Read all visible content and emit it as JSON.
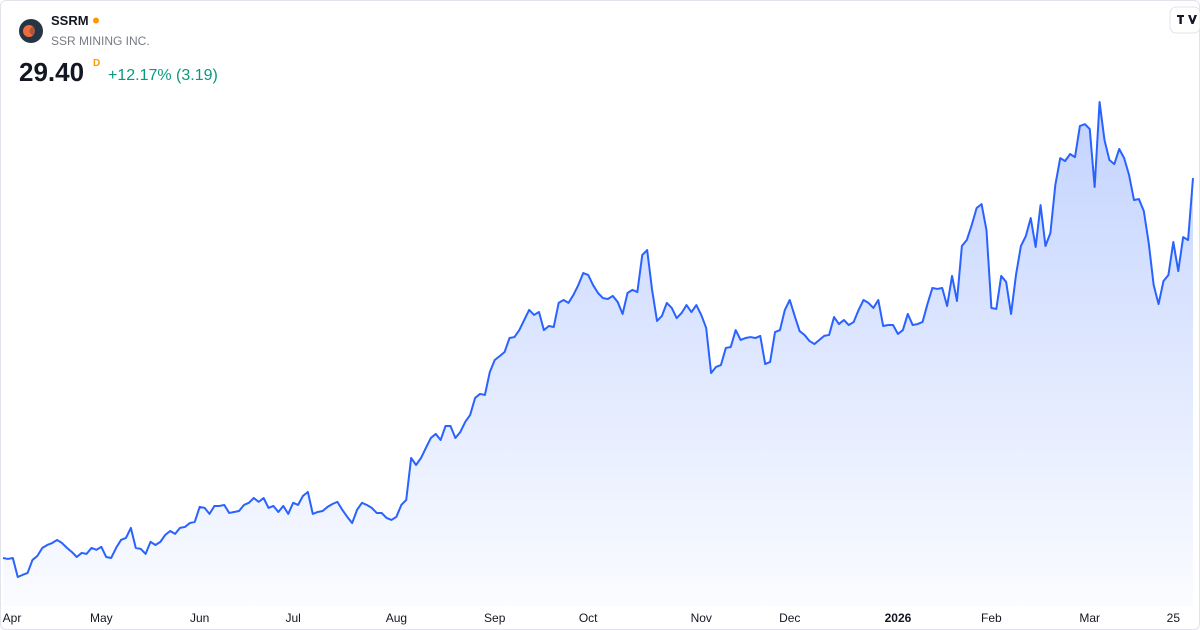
{
  "header": {
    "symbol": "SSRM",
    "name": "SSR MINING INC.",
    "price": "29.40",
    "interval": "D",
    "change": "+12.17% (3.19)"
  },
  "chart_data": {
    "type": "area",
    "color": "#2962ff",
    "categories": [
      null,
      "Apr",
      null,
      null,
      null,
      null,
      null,
      null,
      null,
      null,
      null,
      null,
      null,
      null,
      null,
      null,
      null,
      null,
      null,
      null,
      "May",
      null,
      null,
      null,
      null,
      null,
      null,
      null,
      null,
      null,
      null,
      null,
      null,
      null,
      null,
      null,
      null,
      null,
      null,
      null,
      "Jun",
      null,
      null,
      null,
      null,
      null,
      null,
      null,
      null,
      null,
      null,
      null,
      null,
      null,
      null,
      null,
      null,
      null,
      null,
      "Jul",
      null,
      null,
      null,
      null,
      null,
      null,
      null,
      null,
      null,
      null,
      null,
      null,
      null,
      null,
      null,
      null,
      null,
      null,
      null,
      null,
      "Aug",
      null,
      null,
      null,
      null,
      null,
      null,
      null,
      null,
      null,
      null,
      null,
      null,
      null,
      null,
      null,
      null,
      null,
      null,
      null,
      "Sep",
      null,
      null,
      null,
      null,
      null,
      null,
      null,
      null,
      null,
      null,
      null,
      null,
      null,
      null,
      null,
      null,
      null,
      null,
      "Oct",
      null,
      null,
      null,
      null,
      null,
      null,
      null,
      null,
      null,
      null,
      null,
      null,
      null,
      null,
      null,
      null,
      null,
      null,
      null,
      null,
      null,
      null,
      "Nov",
      null,
      null,
      null,
      null,
      null,
      null,
      null,
      null,
      null,
      null,
      null,
      null,
      null,
      null,
      null,
      null,
      null,
      "Dec",
      null,
      null,
      null,
      null,
      null,
      null,
      null,
      null,
      null,
      null,
      null,
      null,
      null,
      null,
      null,
      null,
      null,
      null,
      null,
      null,
      null,
      "2026",
      null,
      null,
      null,
      null,
      null,
      null,
      null,
      null,
      null,
      null,
      null,
      null,
      null,
      null,
      null,
      null,
      null,
      null,
      "Feb",
      null,
      null,
      null,
      null,
      null,
      null,
      null,
      null,
      null,
      null,
      null,
      null,
      null,
      null,
      null,
      null,
      null,
      null,
      null,
      "Mar",
      null,
      null,
      null,
      null,
      null,
      null,
      null,
      null,
      null,
      null,
      null,
      null,
      null,
      null,
      null,
      null,
      "25",
      null,
      null,
      null,
      null
    ],
    "values": [
      9.83,
      9.78,
      9.83,
      8.85,
      8.96,
      9.06,
      9.73,
      9.94,
      10.35,
      10.5,
      10.6,
      10.76,
      10.6,
      10.35,
      10.14,
      9.88,
      10.09,
      10.04,
      10.35,
      10.25,
      10.4,
      9.88,
      9.83,
      10.35,
      10.76,
      10.86,
      11.38,
      10.35,
      10.3,
      10.04,
      10.66,
      10.5,
      10.66,
      11.02,
      11.22,
      11.07,
      11.38,
      11.43,
      11.63,
      11.69,
      12.46,
      12.41,
      12.1,
      12.51,
      12.51,
      12.56,
      12.15,
      12.2,
      12.25,
      12.56,
      12.67,
      12.92,
      12.72,
      12.92,
      12.41,
      12.51,
      12.2,
      12.51,
      12.1,
      12.67,
      12.56,
      13.03,
      13.23,
      12.1,
      12.2,
      12.25,
      12.46,
      12.61,
      12.72,
      12.31,
      11.95,
      11.63,
      12.31,
      12.67,
      12.56,
      12.41,
      12.15,
      12.15,
      11.89,
      11.79,
      11.95,
      12.56,
      12.82,
      14.98,
      14.62,
      14.98,
      15.5,
      16.01,
      16.22,
      15.91,
      16.63,
      16.63,
      16.01,
      16.32,
      16.84,
      17.2,
      18.07,
      18.28,
      18.23,
      19.41,
      20.03,
      20.23,
      20.44,
      21.16,
      21.21,
      21.57,
      22.09,
      22.61,
      22.35,
      22.5,
      21.57,
      21.78,
      21.73,
      22.97,
      23.12,
      22.97,
      23.38,
      23.89,
      24.51,
      24.41,
      23.89,
      23.48,
      23.22,
      23.17,
      23.33,
      23.02,
      22.4,
      23.48,
      23.64,
      23.53,
      25.44,
      25.69,
      23.64,
      22.04,
      22.3,
      22.97,
      22.71,
      22.19,
      22.45,
      22.86,
      22.5,
      22.86,
      22.35,
      21.68,
      19.36,
      19.67,
      19.77,
      20.65,
      20.7,
      21.57,
      21.06,
      21.16,
      21.21,
      21.16,
      21.27,
      19.82,
      19.93,
      21.47,
      21.57,
      22.61,
      23.12,
      22.3,
      21.52,
      21.32,
      21.01,
      20.85,
      21.06,
      21.27,
      21.32,
      22.24,
      21.88,
      22.09,
      21.83,
      21.99,
      22.61,
      23.12,
      22.97,
      22.71,
      23.12,
      21.78,
      21.83,
      21.83,
      21.37,
      21.57,
      22.4,
      21.83,
      21.88,
      21.99,
      22.91,
      23.74,
      23.69,
      23.74,
      22.81,
      24.36,
      23.07,
      25.9,
      26.21,
      26.98,
      27.86,
      28.06,
      26.72,
      22.71,
      22.66,
      24.36,
      24.05,
      22.4,
      24.41,
      25.9,
      26.41,
      27.34,
      25.85,
      28.01,
      25.9,
      26.57,
      29.04,
      30.43,
      30.28,
      30.64,
      30.48,
      32.08,
      32.18,
      31.93,
      28.94,
      33.32,
      31.36,
      30.33,
      30.12,
      30.9,
      30.43,
      29.56,
      28.27,
      28.32,
      27.7,
      26.05,
      23.89,
      22.91,
      24.1,
      24.41,
      26.11,
      24.61,
      26.36,
      26.21,
      29.4
    ]
  }
}
